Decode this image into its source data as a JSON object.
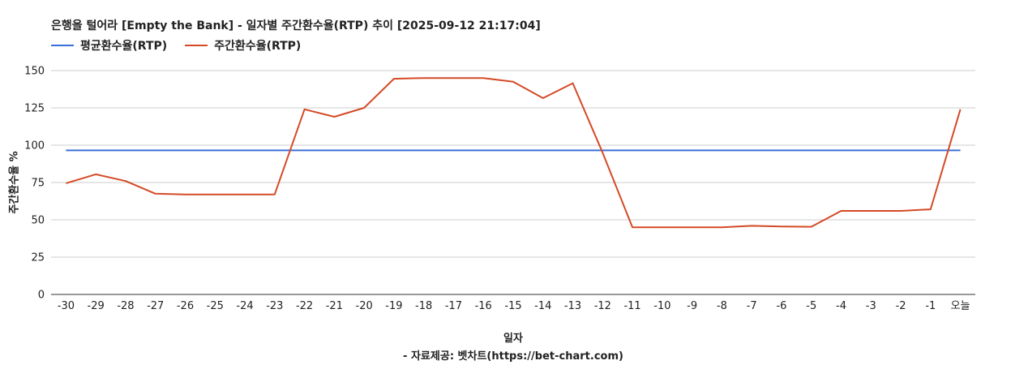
{
  "chart_data": {
    "type": "line",
    "title": "은행을 털어라 [Empty the Bank] - 일자별 주간환수율(RTP) 추이 [2025-09-12 21:17:04]",
    "xlabel": "일자",
    "ylabel": "주간환수율 %",
    "source": "- 자료제공: 벳차트(https://bet-chart.com)",
    "ylim": [
      0,
      150
    ],
    "yticks": [
      0,
      25,
      50,
      75,
      100,
      125,
      150
    ],
    "grid": true,
    "legend_position": "top-left",
    "categories": [
      "-30",
      "-29",
      "-28",
      "-27",
      "-26",
      "-25",
      "-24",
      "-23",
      "-22",
      "-21",
      "-20",
      "-19",
      "-18",
      "-17",
      "-16",
      "-15",
      "-14",
      "-13",
      "-12",
      "-11",
      "-10",
      "-9",
      "-8",
      "-7",
      "-6",
      "-5",
      "-4",
      "-3",
      "-2",
      "-1",
      "오늘"
    ],
    "series": [
      {
        "name": "평균환수율(RTP)",
        "color": "#3b6fd9",
        "values": [
          96.5,
          96.5,
          96.5,
          96.5,
          96.5,
          96.5,
          96.5,
          96.5,
          96.5,
          96.5,
          96.5,
          96.5,
          96.5,
          96.5,
          96.5,
          96.5,
          96.5,
          96.5,
          96.5,
          96.5,
          96.5,
          96.5,
          96.5,
          96.5,
          96.5,
          96.5,
          96.5,
          96.5,
          96.5,
          96.5,
          96.5
        ]
      },
      {
        "name": "주간환수율(RTP)",
        "color": "#d44a26",
        "values": [
          74.5,
          80.5,
          76,
          67.5,
          67,
          67,
          67,
          67,
          124,
          119,
          125,
          144.5,
          145,
          145,
          145,
          142.5,
          131.5,
          141.5,
          95,
          45,
          45,
          45,
          45,
          46,
          45.5,
          45.3,
          56,
          56,
          56,
          57,
          124
        ]
      }
    ]
  }
}
